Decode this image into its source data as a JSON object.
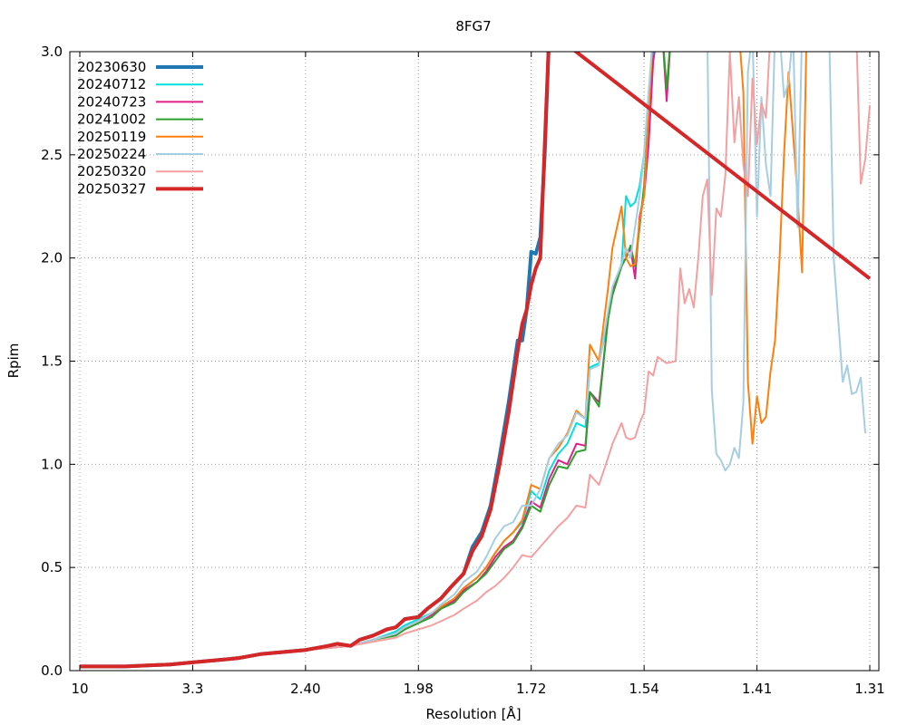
{
  "chart_data": {
    "type": "line",
    "title": "8FG7",
    "xlabel": "Resolution [Å]",
    "ylabel": "Rpim",
    "x_ticks": [
      "10",
      "3.3",
      "2.40",
      "1.98",
      "1.72",
      "1.54",
      "1.41",
      "1.31"
    ],
    "x_domain": [
      0,
      175
    ],
    "x_tick_positions": [
      0,
      25,
      50,
      75,
      100,
      125,
      150,
      175
    ],
    "ylim": [
      0,
      3
    ],
    "y_ticks": [
      "0.0",
      "0.5",
      "1.0",
      "1.5",
      "2.0",
      "2.5",
      "3.0"
    ],
    "grid": true,
    "legend_position": "top-left",
    "series": [
      {
        "name": "20230630",
        "color": "#1f77b4",
        "width": 4,
        "x": [
          0,
          5,
          10,
          15,
          20,
          25,
          30,
          35,
          40,
          45,
          50,
          55,
          57,
          60,
          62,
          65,
          68,
          70,
          72,
          75,
          77,
          80,
          82,
          85,
          87,
          89,
          91,
          93,
          95,
          97,
          98,
          99,
          100,
          101,
          102,
          103,
          104
        ],
        "y": [
          0.02,
          0.02,
          0.02,
          0.025,
          0.03,
          0.04,
          0.05,
          0.06,
          0.08,
          0.09,
          0.1,
          0.12,
          0.13,
          0.12,
          0.15,
          0.17,
          0.2,
          0.21,
          0.25,
          0.26,
          0.3,
          0.35,
          0.4,
          0.47,
          0.6,
          0.67,
          0.8,
          1.04,
          1.3,
          1.6,
          1.6,
          1.75,
          2.03,
          2.02,
          2.1,
          2.5,
          3.1
        ]
      },
      {
        "name": "20240712",
        "color": "#00e0e0",
        "width": 2,
        "x": [
          0,
          10,
          20,
          30,
          40,
          50,
          55,
          60,
          65,
          70,
          72,
          75,
          78,
          80,
          83,
          85,
          88,
          90,
          92,
          94,
          96,
          98,
          100,
          102,
          104,
          106,
          108,
          110,
          112,
          113,
          115,
          117,
          118,
          120,
          121,
          122,
          123,
          124,
          125,
          126,
          127,
          128,
          129,
          130
        ],
        "y": [
          0.02,
          0.02,
          0.03,
          0.05,
          0.08,
          0.1,
          0.11,
          0.12,
          0.15,
          0.19,
          0.22,
          0.25,
          0.28,
          0.31,
          0.35,
          0.4,
          0.45,
          0.5,
          0.57,
          0.63,
          0.67,
          0.72,
          0.87,
          0.83,
          0.97,
          1.05,
          1.1,
          1.2,
          1.18,
          1.47,
          1.49,
          1.7,
          1.85,
          1.97,
          2.3,
          2.25,
          2.27,
          2.35,
          2.5,
          2.8,
          3.0,
          3.1,
          3.1,
          3.1
        ]
      },
      {
        "name": "20240723",
        "color": "#e0208a",
        "width": 2,
        "x": [
          0,
          10,
          20,
          30,
          40,
          50,
          55,
          60,
          65,
          70,
          72,
          75,
          78,
          80,
          83,
          85,
          88,
          90,
          92,
          94,
          96,
          98,
          100,
          102,
          104,
          106,
          108,
          110,
          112,
          113,
          115,
          117,
          118,
          120,
          121,
          122,
          123,
          124,
          125,
          126,
          127,
          128,
          129,
          130,
          131
        ],
        "y": [
          0.02,
          0.02,
          0.03,
          0.05,
          0.08,
          0.1,
          0.11,
          0.12,
          0.15,
          0.18,
          0.21,
          0.24,
          0.27,
          0.3,
          0.34,
          0.39,
          0.43,
          0.48,
          0.55,
          0.6,
          0.63,
          0.7,
          0.82,
          0.79,
          0.93,
          1.02,
          1.0,
          1.1,
          1.09,
          1.35,
          1.3,
          1.7,
          1.85,
          1.97,
          2.0,
          2.05,
          1.9,
          2.2,
          2.3,
          2.55,
          2.95,
          3.1,
          3.1,
          2.76,
          3.1
        ]
      },
      {
        "name": "20241002",
        "color": "#2ca02c",
        "width": 2,
        "x": [
          0,
          10,
          20,
          30,
          40,
          50,
          55,
          60,
          65,
          70,
          72,
          75,
          78,
          80,
          83,
          85,
          88,
          90,
          92,
          94,
          96,
          98,
          100,
          102,
          104,
          106,
          108,
          110,
          112,
          113,
          115,
          117,
          118,
          120,
          121,
          122,
          123,
          124,
          125,
          126,
          127,
          128,
          129,
          130,
          131
        ],
        "y": [
          0.02,
          0.02,
          0.03,
          0.05,
          0.08,
          0.1,
          0.11,
          0.12,
          0.15,
          0.17,
          0.2,
          0.23,
          0.26,
          0.3,
          0.33,
          0.38,
          0.43,
          0.47,
          0.53,
          0.59,
          0.62,
          0.69,
          0.8,
          0.77,
          0.9,
          0.99,
          0.98,
          1.06,
          1.07,
          1.35,
          1.28,
          1.7,
          1.82,
          1.96,
          2.0,
          2.06,
          1.96,
          2.15,
          2.35,
          2.7,
          3.1,
          3.1,
          3.1,
          2.82,
          3.1
        ]
      },
      {
        "name": "20250119",
        "color": "#ff7f0e",
        "width": 2,
        "x": [
          0,
          10,
          20,
          30,
          40,
          50,
          55,
          60,
          65,
          70,
          72,
          75,
          78,
          80,
          83,
          85,
          88,
          90,
          92,
          94,
          96,
          98,
          100,
          102,
          104,
          106,
          108,
          110,
          112,
          113,
          115,
          117,
          118,
          120,
          121,
          122,
          123,
          124,
          125,
          126,
          127,
          128,
          130,
          132,
          134,
          136,
          138,
          140,
          142,
          144,
          146,
          147,
          148,
          149,
          150,
          151,
          152,
          153,
          154,
          155,
          156,
          157,
          158,
          159,
          160,
          161,
          162,
          163,
          164,
          165,
          166,
          167,
          168
        ],
        "y": [
          0.02,
          0.02,
          0.03,
          0.05,
          0.08,
          0.1,
          0.11,
          0.12,
          0.15,
          0.18,
          0.21,
          0.24,
          0.28,
          0.31,
          0.35,
          0.4,
          0.45,
          0.5,
          0.57,
          0.63,
          0.67,
          0.73,
          0.9,
          0.88,
          1.03,
          1.08,
          1.15,
          1.26,
          1.22,
          1.58,
          1.5,
          1.85,
          2.05,
          2.25,
          2.0,
          1.96,
          1.97,
          2.18,
          2.3,
          2.7,
          3.1,
          3.1,
          3.1,
          3.1,
          3.1,
          3.1,
          3.1,
          3.1,
          3.1,
          3.1,
          3.1,
          2.8,
          1.4,
          1.1,
          1.33,
          1.2,
          1.23,
          1.45,
          1.6,
          2.0,
          2.5,
          2.9,
          2.6,
          2.3,
          1.93,
          3.1,
          3.1,
          3.1,
          3.1,
          3.1,
          3.1,
          3.1,
          3.1
        ]
      },
      {
        "name": "20250224",
        "color": "#a6cee3",
        "width": 2,
        "x": [
          0,
          10,
          20,
          30,
          40,
          50,
          55,
          60,
          65,
          70,
          72,
          75,
          78,
          80,
          83,
          85,
          88,
          90,
          92,
          94,
          96,
          98,
          100,
          102,
          104,
          106,
          108,
          110,
          112,
          113,
          115,
          117,
          118,
          120,
          121,
          122,
          123,
          124,
          125,
          126,
          127,
          128,
          130,
          132,
          134,
          136,
          138,
          139,
          140,
          141,
          142,
          143,
          144,
          145,
          146,
          147,
          148,
          149,
          150,
          151,
          152,
          153,
          154,
          155,
          156,
          157,
          158,
          159,
          160,
          161,
          162,
          163,
          164,
          165,
          166,
          167,
          168,
          169,
          170,
          171,
          172,
          173,
          174
        ],
        "y": [
          0.02,
          0.02,
          0.03,
          0.05,
          0.08,
          0.1,
          0.11,
          0.12,
          0.15,
          0.18,
          0.21,
          0.24,
          0.28,
          0.32,
          0.37,
          0.43,
          0.48,
          0.55,
          0.64,
          0.7,
          0.72,
          0.8,
          0.8,
          0.88,
          1.03,
          1.1,
          1.14,
          1.25,
          1.22,
          1.46,
          1.48,
          1.74,
          1.86,
          1.97,
          2.05,
          2.0,
          2.15,
          2.3,
          2.5,
          2.8,
          3.1,
          3.1,
          3.1,
          3.1,
          3.1,
          3.1,
          3.1,
          3.1,
          1.36,
          1.05,
          1.02,
          0.97,
          1.0,
          1.08,
          1.03,
          1.3,
          2.9,
          3.1,
          2.2,
          2.78,
          2.45,
          2.3,
          3.1,
          3.1,
          2.78,
          2.85,
          3.1,
          2.15,
          3.1,
          3.1,
          3.1,
          3.1,
          3.1,
          3.1,
          3.1,
          2.0,
          1.7,
          1.4,
          1.48,
          1.34,
          1.35,
          1.42,
          1.15
        ]
      },
      {
        "name": "20250320",
        "color": "#f4a0a0",
        "width": 2,
        "x": [
          0,
          10,
          20,
          30,
          40,
          50,
          55,
          60,
          65,
          70,
          72,
          75,
          78,
          80,
          83,
          85,
          88,
          90,
          92,
          94,
          96,
          98,
          100,
          102,
          104,
          106,
          108,
          110,
          112,
          113,
          115,
          117,
          118,
          120,
          121,
          122,
          123,
          124,
          125,
          126,
          127,
          128,
          130,
          132,
          133,
          134,
          135,
          136,
          137,
          138,
          139,
          140,
          141,
          142,
          143,
          144,
          145,
          146,
          147,
          148,
          149,
          150,
          151,
          152,
          153,
          154,
          155,
          156,
          157,
          158,
          159,
          160,
          161,
          162,
          163,
          164,
          165,
          166,
          167,
          168,
          169,
          170,
          171,
          172,
          173,
          174,
          175
        ],
        "y": [
          0.02,
          0.02,
          0.03,
          0.05,
          0.08,
          0.1,
          0.11,
          0.12,
          0.14,
          0.16,
          0.18,
          0.2,
          0.22,
          0.24,
          0.27,
          0.3,
          0.34,
          0.38,
          0.41,
          0.45,
          0.5,
          0.56,
          0.55,
          0.6,
          0.65,
          0.7,
          0.74,
          0.8,
          0.79,
          0.95,
          0.9,
          1.03,
          1.1,
          1.2,
          1.13,
          1.12,
          1.13,
          1.2,
          1.25,
          1.45,
          1.43,
          1.52,
          1.49,
          1.5,
          1.95,
          1.78,
          1.85,
          1.76,
          2.0,
          2.3,
          2.38,
          1.82,
          2.24,
          2.2,
          2.4,
          3.0,
          2.56,
          2.78,
          2.45,
          2.3,
          2.87,
          2.55,
          2.75,
          2.68,
          3.1,
          3.1,
          3.1,
          3.1,
          3.1,
          3.1,
          3.1,
          3.1,
          3.1,
          3.1,
          3.1,
          3.1,
          3.1,
          3.1,
          3.1,
          3.1,
          3.1,
          3.1,
          3.1,
          3.1,
          2.36,
          2.48,
          2.74
        ]
      },
      {
        "name": "20250327",
        "color": "#d62728",
        "width": 4,
        "x": [
          0,
          5,
          10,
          15,
          20,
          25,
          30,
          35,
          40,
          45,
          50,
          55,
          57,
          60,
          62,
          65,
          68,
          70,
          72,
          75,
          77,
          80,
          82,
          85,
          87,
          89,
          91,
          93,
          95,
          97,
          98,
          99,
          100,
          101,
          102,
          103,
          104,
          175
        ],
        "y": [
          0.02,
          0.02,
          0.02,
          0.025,
          0.03,
          0.04,
          0.05,
          0.06,
          0.08,
          0.09,
          0.1,
          0.12,
          0.13,
          0.12,
          0.15,
          0.17,
          0.2,
          0.21,
          0.25,
          0.26,
          0.3,
          0.35,
          0.4,
          0.47,
          0.58,
          0.65,
          0.78,
          1.0,
          1.25,
          1.55,
          1.68,
          1.75,
          1.87,
          1.95,
          2.0,
          2.55,
          3.1,
          1.9
        ]
      }
    ]
  }
}
